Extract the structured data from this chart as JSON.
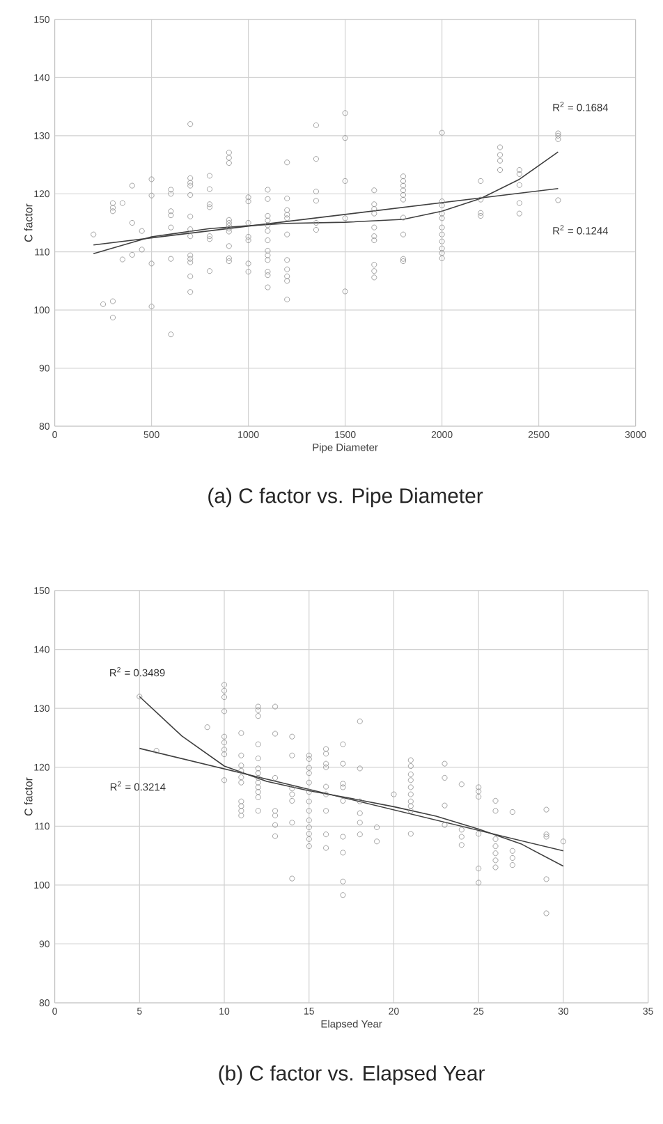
{
  "chart_data": [
    {
      "type": "scatter",
      "title": "(a) C factor vs. Pipe Diameter",
      "xlabel": "Pipe Diameter",
      "ylabel": "C factor",
      "xlim": [
        0,
        3000
      ],
      "xticks": [
        0,
        500,
        1000,
        1500,
        2000,
        2500,
        3000
      ],
      "ylim": [
        80,
        150
      ],
      "yticks": [
        80,
        90,
        100,
        110,
        120,
        130,
        140,
        150
      ],
      "grid": true,
      "marker": "circle",
      "series": [
        {
          "color": "#8a8a8a",
          "x": [
            200,
            250,
            300,
            300,
            300,
            300,
            300,
            350,
            350,
            400,
            400,
            400,
            450,
            450,
            500,
            500,
            500,
            500,
            600,
            600,
            600,
            600,
            600,
            600,
            600,
            700,
            700,
            700,
            700,
            700,
            700,
            700,
            700,
            700,
            700,
            700,
            700,
            700,
            800,
            800,
            800,
            800,
            800,
            800,
            800,
            900,
            900,
            900,
            900,
            900,
            900,
            900,
            900,
            900,
            900,
            900,
            1000,
            1000,
            1000,
            1000,
            1000,
            1000,
            1000,
            1100,
            1100,
            1100,
            1100,
            1100,
            1100,
            1100,
            1100,
            1100,
            1100,
            1100,
            1100,
            1100,
            1200,
            1200,
            1200,
            1200,
            1200,
            1200,
            1200,
            1200,
            1200,
            1200,
            1200,
            1350,
            1350,
            1350,
            1350,
            1350,
            1350,
            1500,
            1500,
            1500,
            1500,
            1500,
            1650,
            1650,
            1650,
            1650,
            1650,
            1650,
            1650,
            1650,
            1650,
            1650,
            1800,
            1800,
            1800,
            1800,
            1800,
            1800,
            1800,
            1800,
            1800,
            1800,
            2000,
            2000,
            2000,
            2000,
            2000,
            2000,
            2000,
            2000,
            2000,
            2000,
            2000,
            2200,
            2200,
            2200,
            2200,
            2300,
            2300,
            2300,
            2300,
            2400,
            2400,
            2400,
            2400,
            2400,
            2600,
            2600,
            2600,
            2600
          ],
          "values": [
            113,
            101,
            101.5,
            98.7,
            118.4,
            117.6,
            117,
            118.4,
            108.7,
            121.4,
            115,
            109.5,
            113.6,
            110.4,
            122.5,
            119.7,
            108,
            100.6,
            120.7,
            120,
            117,
            116.3,
            114.2,
            108.8,
            95.8,
            132,
            122.7,
            121.9,
            121.4,
            119.8,
            116.1,
            113.9,
            112.7,
            109.4,
            108.8,
            108.2,
            105.8,
            103.1,
            123.1,
            120.8,
            118.2,
            117.7,
            112.7,
            112.2,
            106.7,
            127.1,
            126.2,
            125.3,
            115.5,
            115,
            114.5,
            114,
            113.5,
            111,
            108.9,
            108.4,
            119.4,
            118.7,
            115,
            112.6,
            112,
            108,
            106.6,
            120.7,
            119.1,
            116.2,
            115.4,
            114.6,
            113.6,
            112,
            110.2,
            109.4,
            108.6,
            106.6,
            106,
            103.9,
            125.4,
            119.2,
            117.2,
            116.4,
            115.8,
            113,
            108.6,
            107,
            105.8,
            105,
            101.8,
            131.8,
            126,
            120.4,
            118.8,
            115,
            113.8,
            133.9,
            129.6,
            122.2,
            115.8,
            103.2,
            120.6,
            118.2,
            117.4,
            116.6,
            114.2,
            112.7,
            112,
            107.8,
            106.7,
            105.6,
            123,
            122.2,
            121.4,
            120.6,
            119.8,
            119,
            115.9,
            113,
            108.8,
            108.4,
            130.5,
            118.7,
            118,
            116.6,
            115.8,
            114.2,
            113,
            111.8,
            110.6,
            109.8,
            108.9,
            122.2,
            119,
            116.7,
            116.2,
            128,
            126.7,
            125.7,
            124.1,
            124.1,
            123.4,
            121.5,
            118.4,
            116.6,
            130.4,
            130,
            129.4,
            118.9
          ]
        },
        {
          "type": "line",
          "color": "#404040",
          "marker": "none",
          "x": [
            200,
            2600
          ],
          "values": [
            111.2,
            120.9
          ]
        },
        {
          "type": "line",
          "color": "#404040",
          "marker": "none",
          "x": [
            200,
            500,
            800,
            1000,
            1200,
            1500,
            1800,
            2000,
            2200,
            2400,
            2600
          ],
          "values": [
            109.7,
            112.6,
            114,
            114.5,
            114.9,
            115.1,
            115.6,
            117,
            119.2,
            122.5,
            127.2
          ]
        }
      ],
      "annotations": [
        "R$^{2}$ = 0.1684",
        "R$^{2}$ = 0.1244"
      ]
    },
    {
      "type": "scatter",
      "title": "(b) C factor vs. Elapsed Year",
      "xlabel": "Elapsed Year",
      "ylabel": "C factor",
      "xlim": [
        0,
        35
      ],
      "xticks": [
        0,
        5,
        10,
        15,
        20,
        25,
        30,
        35
      ],
      "ylim": [
        80,
        150
      ],
      "yticks": [
        80,
        90,
        100,
        110,
        120,
        130,
        140,
        150
      ],
      "grid": true,
      "marker": "circle",
      "series": [
        {
          "color": "#8a8a8a",
          "x": [
            5,
            6,
            9,
            10,
            10,
            10,
            10,
            10,
            10,
            10,
            10,
            10,
            11,
            11,
            11,
            11,
            11,
            11,
            11,
            11,
            11,
            11,
            12,
            12,
            12,
            12,
            12,
            12,
            12,
            12,
            12,
            12,
            12,
            12,
            12,
            13,
            13,
            13,
            13,
            13,
            13,
            13,
            14,
            14,
            14,
            14,
            14,
            14,
            14,
            15,
            15,
            15,
            15,
            15,
            15,
            15,
            15,
            15,
            15,
            15,
            15,
            15,
            16,
            16,
            16,
            16,
            16,
            16,
            16,
            16,
            16,
            17,
            17,
            17,
            17,
            17,
            17,
            17,
            17,
            17,
            18,
            18,
            18,
            18,
            18,
            18,
            19,
            19,
            20,
            21,
            21,
            21,
            21,
            21,
            21,
            21,
            21,
            21,
            21,
            23,
            23,
            23,
            23,
            24,
            24,
            24,
            24,
            25,
            25,
            25,
            25,
            25,
            25,
            26,
            26,
            26,
            26,
            26,
            26,
            26,
            27,
            27,
            27,
            27,
            29,
            29,
            29,
            29,
            29,
            30
          ],
          "values": [
            132,
            122.8,
            126.8,
            134,
            133,
            131.9,
            129.5,
            125.2,
            124.2,
            123,
            122.2,
            117.8,
            125.8,
            122,
            120.3,
            119.4,
            118.3,
            117.4,
            114.2,
            113.4,
            112.6,
            111.8,
            130.3,
            129.7,
            128.7,
            123.9,
            121.5,
            119.8,
            119,
            118.2,
            117.4,
            116.6,
            115.8,
            114.9,
            112.6,
            130.3,
            125.7,
            118.2,
            112.6,
            111.8,
            110.2,
            108.3,
            125.2,
            122,
            116.4,
            115.4,
            114.3,
            110.6,
            101.1,
            122,
            121.4,
            119.9,
            119,
            117.4,
            115.8,
            114.2,
            112.6,
            111,
            109.8,
            108.7,
            107.8,
            106.6,
            123.1,
            122.3,
            120.6,
            120,
            116.7,
            115.4,
            112.6,
            108.6,
            106.3,
            123.9,
            120.6,
            117.2,
            116.6,
            114.3,
            108.2,
            105.5,
            100.6,
            98.3,
            127.8,
            119.8,
            114.2,
            112.2,
            110.6,
            108.6,
            109.8,
            107.4,
            115.4,
            121.2,
            120.2,
            118.8,
            117.8,
            116.6,
            115.4,
            114.2,
            113.4,
            112.6,
            108.7,
            120.6,
            118.2,
            113.5,
            110.2,
            117.1,
            109.4,
            108.2,
            106.8,
            116.6,
            115.9,
            115,
            108.7,
            102.8,
            100.4,
            114.3,
            112.6,
            107.8,
            106.6,
            105.4,
            104.2,
            103,
            112.4,
            105.8,
            104.6,
            103.4,
            112.8,
            108.6,
            108.2,
            101,
            95.2,
            107.4
          ]
        },
        {
          "type": "line",
          "color": "#404040",
          "marker": "none",
          "x": [
            5,
            30
          ],
          "values": [
            123.2,
            105.8
          ]
        },
        {
          "type": "line",
          "color": "#404040",
          "marker": "none",
          "x": [
            5,
            7.5,
            10,
            12.5,
            15,
            17.5,
            20,
            22.5,
            25,
            27.5,
            30
          ],
          "values": [
            132,
            125.3,
            120.2,
            117.6,
            116,
            114.7,
            113.3,
            111.7,
            109.5,
            107,
            103.2
          ]
        }
      ],
      "annotations": [
        "R$^{2}$ = 0.3489",
        "R$^{2}$ = 0.3214"
      ]
    }
  ]
}
